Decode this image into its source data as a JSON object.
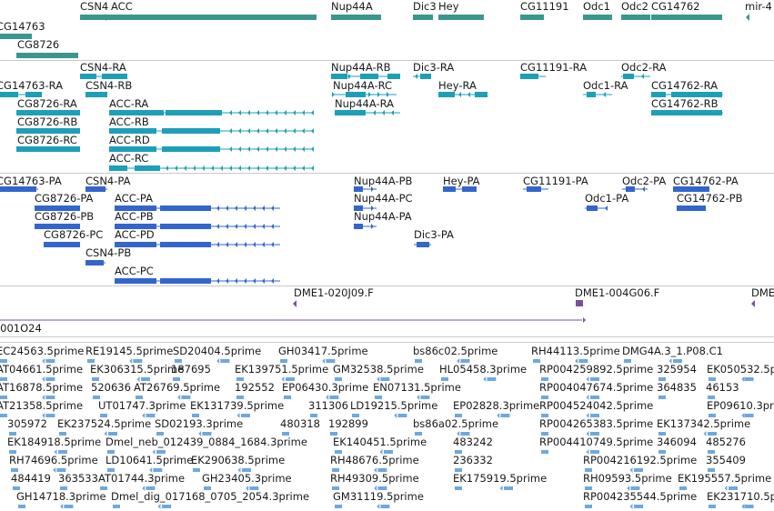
{
  "colors": {
    "gene": "#3b9690",
    "transcript": "#1d9fb8",
    "protein": "#3366cc",
    "clone": "#7b4fa0",
    "est": "#6fa8dc",
    "separator": "#c9c9c9",
    "text": "#1a1a1a"
  },
  "tracks": {
    "genes": [
      {
        "label": "CSN4"
      },
      {
        "label": "ACC"
      },
      {
        "label": "Nup44A"
      },
      {
        "label": "Dic3"
      },
      {
        "label": "Hey"
      },
      {
        "label": "CG11191"
      },
      {
        "label": "Odc1"
      },
      {
        "label": "Odc2"
      },
      {
        "label": "CG14762"
      },
      {
        "label": "mir-4"
      },
      {
        "label": "CG14763"
      },
      {
        "label": "CG8726"
      }
    ],
    "transcripts": [
      {
        "label": "CSN4-RA"
      },
      {
        "label": "Nup44A-RB"
      },
      {
        "label": "Dic3-RA"
      },
      {
        "label": "CG11191-RA"
      },
      {
        "label": "Odc2-RA"
      },
      {
        "label": "CG14763-RA"
      },
      {
        "label": "CSN4-RB"
      },
      {
        "label": "Nup44A-RC"
      },
      {
        "label": "Hey-RA"
      },
      {
        "label": "Odc1-RA"
      },
      {
        "label": "CG14762-RA"
      },
      {
        "label": "CG8726-RA"
      },
      {
        "label": "ACC-RA"
      },
      {
        "label": "Nup44A-RA"
      },
      {
        "label": "CG14762-RB"
      },
      {
        "label": "CG8726-RB"
      },
      {
        "label": "ACC-RB"
      },
      {
        "label": "CG8726-RC"
      },
      {
        "label": "ACC-RD"
      },
      {
        "label": "ACC-RC"
      }
    ],
    "proteins": [
      {
        "label": "CG14763-PA"
      },
      {
        "label": "CSN4-PA"
      },
      {
        "label": "Nup44A-PB"
      },
      {
        "label": "Hey-PA"
      },
      {
        "label": "CG11191-PA"
      },
      {
        "label": "Odc2-PA"
      },
      {
        "label": "CG14762-PA"
      },
      {
        "label": "CG8726-PA"
      },
      {
        "label": "ACC-PA"
      },
      {
        "label": "Nup44A-PC"
      },
      {
        "label": "Odc1-PA"
      },
      {
        "label": "CG14762-PB"
      },
      {
        "label": "CG8726-PB"
      },
      {
        "label": "ACC-PB"
      },
      {
        "label": "Nup44A-PA"
      },
      {
        "label": "CG8726-PC"
      },
      {
        "label": "ACC-PD"
      },
      {
        "label": "Dic3-PA"
      },
      {
        "label": "CSN4-PB"
      },
      {
        "label": "ACC-PC"
      }
    ],
    "clones": [
      {
        "label": "DME1-020J09.F"
      },
      {
        "label": "DME1-004G06.F"
      },
      {
        "label": "DME"
      },
      {
        "label": "-001O24"
      }
    ],
    "ests": [
      {
        "label": "EC24563.5prime"
      },
      {
        "label": "RE19145.5prime"
      },
      {
        "label": "SD20404.5prime"
      },
      {
        "label": "GH03417.5prime"
      },
      {
        "label": "bs86c02.5prime"
      },
      {
        "label": "RH44113.5prime"
      },
      {
        "label": "DMG4A.3_1.P08.C1"
      },
      {
        "label": "AT04661.5prime"
      },
      {
        "label": "EK306315.5prime"
      },
      {
        "label": "187695"
      },
      {
        "label": "EK139751.5prime"
      },
      {
        "label": "GM32538.5prime"
      },
      {
        "label": "HL05458.3prime"
      },
      {
        "label": "RP004259892.5prime"
      },
      {
        "label": "325954"
      },
      {
        "label": "EK050532.5p"
      },
      {
        "label": "AT16878.5prime"
      },
      {
        "label": "520636"
      },
      {
        "label": "AT26769.5prime"
      },
      {
        "label": "192552"
      },
      {
        "label": "EP06430.3prime"
      },
      {
        "label": "EN07131.5prime"
      },
      {
        "label": "RP004047674.5prime"
      },
      {
        "label": "364835"
      },
      {
        "label": "46153"
      },
      {
        "label": "AT21358.5prime"
      },
      {
        "label": "UT01747.3prime"
      },
      {
        "label": "EK131739.5prime"
      },
      {
        "label": "311306"
      },
      {
        "label": "LD19215.5prime"
      },
      {
        "label": "EP02828.3prime"
      },
      {
        "label": "RP004524042.5prime"
      },
      {
        "label": "EP09610.3pr"
      },
      {
        "label": "305972"
      },
      {
        "label": "EK237524.5prime"
      },
      {
        "label": "SD02193.3prime"
      },
      {
        "label": "480318"
      },
      {
        "label": "192899"
      },
      {
        "label": "bs86a02.5prime"
      },
      {
        "label": "RP004265383.5prime"
      },
      {
        "label": "EK137342.5prime"
      },
      {
        "label": "EK184918.5prime"
      },
      {
        "label": "Dmel_neb_012439_0884_1684.3prime"
      },
      {
        "label": "EK140451.5prime"
      },
      {
        "label": "483242"
      },
      {
        "label": "RP004410749.5prime"
      },
      {
        "label": "346094"
      },
      {
        "label": "485276"
      },
      {
        "label": "RH74696.5prime"
      },
      {
        "label": "LD10641.5prime"
      },
      {
        "label": "EK290638.5prime"
      },
      {
        "label": "RH48676.5prime"
      },
      {
        "label": "236332"
      },
      {
        "label": "RP004216192.5prime"
      },
      {
        "label": "355409"
      },
      {
        "label": "484419"
      },
      {
        "label": "363533"
      },
      {
        "label": "AT01744.3prime"
      },
      {
        "label": "GH23405.3prime"
      },
      {
        "label": "RH49309.5prime"
      },
      {
        "label": "EK175919.5prime"
      },
      {
        "label": "RH09593.5prime"
      },
      {
        "label": "EK195557.5prime"
      },
      {
        "label": "GH14718.3prime"
      },
      {
        "label": "Dmel_dig_017168_0705_2054.3prime"
      },
      {
        "label": "GM31119.5prime"
      },
      {
        "label": "RP004235544.5prime"
      },
      {
        "label": "EK231710.5p"
      }
    ]
  }
}
